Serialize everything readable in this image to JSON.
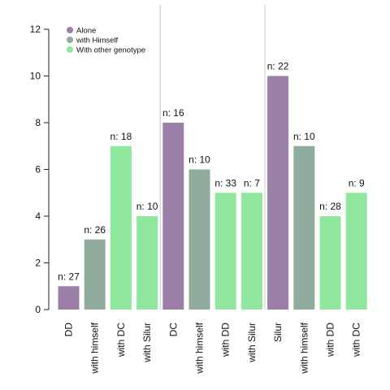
{
  "chart_data": {
    "type": "bar",
    "title": "",
    "xlabel": "",
    "ylabel": "",
    "ylim": [
      0,
      12
    ],
    "yticks": [
      0,
      2,
      4,
      6,
      8,
      10,
      12
    ],
    "grid": false,
    "legend_position": "top-left",
    "legend": [
      {
        "label": "Alone",
        "color": "#9b7fa8"
      },
      {
        "label": "with Himself",
        "color": "#8fac9d"
      },
      {
        "label": "With other genotype",
        "color": "#8fe89e"
      }
    ],
    "group_separators_after": [
      4,
      8
    ],
    "categories": [
      "DD",
      "with himself",
      "with DC",
      "with Silur",
      "DC",
      "with himself",
      "with DD",
      "with Silur",
      "Silur",
      "with himself",
      "with DD",
      "with DC"
    ],
    "values": [
      1,
      3,
      7,
      4,
      8,
      6,
      5,
      5,
      10,
      7,
      4,
      5
    ],
    "kinds": [
      "Alone",
      "with Himself",
      "With other genotype",
      "With other genotype",
      "Alone",
      "with Himself",
      "With other genotype",
      "With other genotype",
      "Alone",
      "with Himself",
      "With other genotype",
      "With other genotype"
    ],
    "bar_labels": [
      "n: 27",
      "n: 26",
      "n: 18",
      "n: 10",
      "n: 16",
      "n: 10",
      "n: 33",
      "n: 7",
      "n: 22",
      "n: 10",
      "n: 28",
      "n: 9"
    ]
  }
}
